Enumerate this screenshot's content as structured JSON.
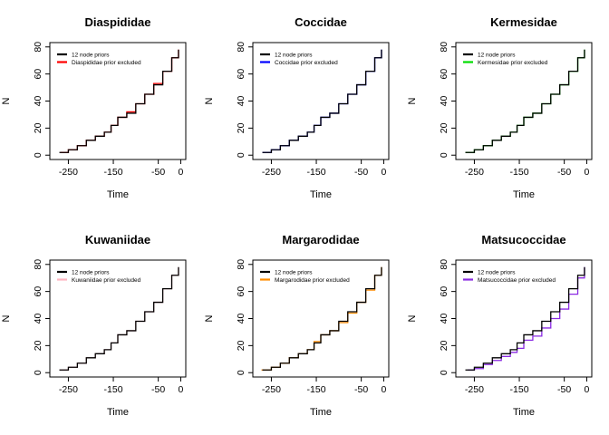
{
  "chart_data": [
    {
      "type": "line",
      "title": "Diaspididae",
      "xlabel": "Time",
      "ylabel": "N",
      "xlim": [
        -280,
        0
      ],
      "ylim": [
        0,
        80
      ],
      "xticks": [
        -250,
        -150,
        -50,
        0
      ],
      "yticks": [
        0,
        20,
        40,
        60,
        80
      ],
      "legend": "top-left",
      "series": [
        {
          "name": "12 node priors",
          "color": "#000000",
          "x": [
            -270,
            -250,
            -230,
            -210,
            -190,
            -170,
            -155,
            -140,
            -120,
            -100,
            -80,
            -60,
            -40,
            -20,
            -5
          ],
          "y": [
            2,
            4,
            7,
            11,
            14,
            17,
            22,
            28,
            31,
            38,
            45,
            52,
            62,
            72,
            78
          ]
        },
        {
          "name": "Diaspididae prior excluded",
          "color": "#ff0000",
          "x": [
            -268,
            -250,
            -230,
            -210,
            -190,
            -170,
            -155,
            -140,
            -120,
            -100,
            -80,
            -60,
            -40,
            -20,
            -5
          ],
          "y": [
            2,
            4,
            7,
            11,
            14,
            17,
            22,
            28,
            32,
            38,
            45,
            53,
            62,
            72,
            78
          ]
        }
      ]
    },
    {
      "type": "line",
      "title": "Coccidae",
      "xlabel": "Time",
      "ylabel": "N",
      "xlim": [
        -280,
        0
      ],
      "ylim": [
        0,
        80
      ],
      "xticks": [
        -250,
        -150,
        -50,
        0
      ],
      "yticks": [
        0,
        20,
        40,
        60,
        80
      ],
      "legend": "top-left",
      "series": [
        {
          "name": "12 node priors",
          "color": "#000000",
          "x": [
            -270,
            -250,
            -230,
            -210,
            -190,
            -170,
            -155,
            -140,
            -120,
            -100,
            -80,
            -60,
            -40,
            -20,
            -5
          ],
          "y": [
            2,
            4,
            7,
            11,
            14,
            17,
            22,
            28,
            31,
            38,
            45,
            52,
            62,
            72,
            78
          ]
        },
        {
          "name": "Coccidae prior excluded",
          "color": "#0000ff",
          "x": [
            -270,
            -250,
            -230,
            -210,
            -190,
            -170,
            -155,
            -140,
            -120,
            -100,
            -80,
            -60,
            -40,
            -20,
            -5
          ],
          "y": [
            2,
            4,
            7,
            11,
            14,
            17,
            22,
            28,
            31,
            38,
            45,
            52,
            62,
            72,
            78
          ]
        }
      ]
    },
    {
      "type": "line",
      "title": "Kermesidae",
      "xlabel": "Time",
      "ylabel": "N",
      "xlim": [
        -280,
        0
      ],
      "ylim": [
        0,
        80
      ],
      "xticks": [
        -250,
        -150,
        -50,
        0
      ],
      "yticks": [
        0,
        20,
        40,
        60,
        80
      ],
      "legend": "top-left",
      "series": [
        {
          "name": "12 node priors",
          "color": "#000000",
          "x": [
            -270,
            -250,
            -230,
            -210,
            -190,
            -170,
            -155,
            -140,
            -120,
            -100,
            -80,
            -60,
            -40,
            -20,
            -5
          ],
          "y": [
            2,
            4,
            7,
            11,
            14,
            17,
            22,
            28,
            31,
            38,
            45,
            52,
            62,
            72,
            78
          ]
        },
        {
          "name": "Kermesidae prior excluded",
          "color": "#00dd00",
          "x": [
            -270,
            -250,
            -230,
            -210,
            -190,
            -170,
            -155,
            -140,
            -120,
            -100,
            -80,
            -60,
            -40,
            -20,
            -5
          ],
          "y": [
            2,
            4,
            7,
            11,
            14,
            17,
            22,
            28,
            31,
            38,
            45,
            52,
            62,
            72,
            78
          ]
        }
      ]
    },
    {
      "type": "line",
      "title": "Kuwaniidae",
      "xlabel": "Time",
      "ylabel": "N",
      "xlim": [
        -280,
        0
      ],
      "ylim": [
        0,
        80
      ],
      "xticks": [
        -250,
        -150,
        -50,
        0
      ],
      "yticks": [
        0,
        20,
        40,
        60,
        80
      ],
      "legend": "top-left",
      "series": [
        {
          "name": "12 node priors",
          "color": "#000000",
          "x": [
            -270,
            -250,
            -230,
            -210,
            -190,
            -170,
            -155,
            -140,
            -120,
            -100,
            -80,
            -60,
            -40,
            -20,
            -5
          ],
          "y": [
            2,
            4,
            7,
            11,
            14,
            17,
            22,
            28,
            31,
            38,
            45,
            52,
            62,
            72,
            78
          ]
        },
        {
          "name": "Kuwaniidae prior excluded",
          "color": "#ffb6c1",
          "x": [
            -270,
            -250,
            -230,
            -210,
            -190,
            -170,
            -155,
            -140,
            -120,
            -100,
            -80,
            -60,
            -40,
            -20,
            -5
          ],
          "y": [
            2,
            4,
            7,
            11,
            14,
            17,
            22,
            28,
            31,
            38,
            45,
            52,
            62,
            72,
            78
          ]
        }
      ]
    },
    {
      "type": "line",
      "title": "Margarodidae",
      "xlabel": "Time",
      "ylabel": "N",
      "xlim": [
        -280,
        0
      ],
      "ylim": [
        0,
        80
      ],
      "xticks": [
        -250,
        -150,
        -50,
        0
      ],
      "yticks": [
        0,
        20,
        40,
        60,
        80
      ],
      "legend": "top-left",
      "series": [
        {
          "name": "12 node priors",
          "color": "#000000",
          "x": [
            -270,
            -250,
            -230,
            -210,
            -190,
            -170,
            -155,
            -140,
            -120,
            -100,
            -80,
            -60,
            -40,
            -20,
            -5
          ],
          "y": [
            2,
            4,
            7,
            11,
            14,
            17,
            22,
            28,
            31,
            38,
            45,
            52,
            62,
            72,
            78
          ]
        },
        {
          "name": "Margarodidae prior excluded",
          "color": "#ff8c00",
          "x": [
            -272,
            -250,
            -230,
            -210,
            -190,
            -170,
            -155,
            -140,
            -120,
            -100,
            -80,
            -60,
            -40,
            -20,
            -5
          ],
          "y": [
            2,
            4,
            7,
            11,
            14,
            17,
            23,
            28,
            31,
            37,
            44,
            52,
            61,
            72,
            78
          ]
        }
      ]
    },
    {
      "type": "line",
      "title": "Matsucoccidae",
      "xlabel": "Time",
      "ylabel": "N",
      "xlim": [
        -280,
        0
      ],
      "ylim": [
        0,
        80
      ],
      "xticks": [
        -250,
        -150,
        -50,
        0
      ],
      "yticks": [
        0,
        20,
        40,
        60,
        80
      ],
      "legend": "top-left",
      "series": [
        {
          "name": "12 node priors",
          "color": "#000000",
          "x": [
            -270,
            -250,
            -230,
            -210,
            -190,
            -170,
            -155,
            -140,
            -120,
            -100,
            -80,
            -60,
            -40,
            -20,
            -5
          ],
          "y": [
            2,
            4,
            7,
            11,
            14,
            17,
            22,
            28,
            31,
            38,
            45,
            52,
            62,
            72,
            78
          ]
        },
        {
          "name": "Matsucoccidae prior excluded",
          "color": "#8a2be2",
          "x": [
            -265,
            -250,
            -230,
            -210,
            -190,
            -170,
            -155,
            -140,
            -120,
            -100,
            -80,
            -60,
            -40,
            -20,
            -5
          ],
          "y": [
            2,
            3,
            6,
            9,
            12,
            15,
            18,
            24,
            27,
            33,
            40,
            47,
            58,
            70,
            78
          ]
        }
      ]
    }
  ]
}
